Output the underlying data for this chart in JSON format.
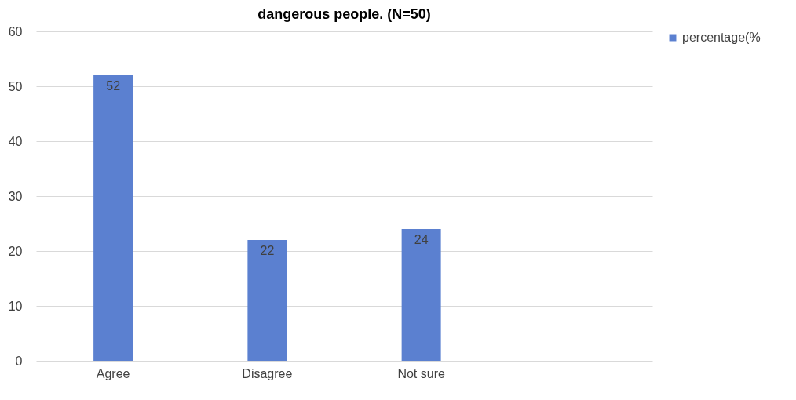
{
  "chart_data": {
    "type": "bar",
    "title": "dangerous people. (N=50)",
    "categories": [
      "Agree",
      "Disagree",
      "Not sure",
      null
    ],
    "series": [
      {
        "name": "percentage(%",
        "color": "#5b80d0",
        "values": [
          52,
          22,
          24,
          null
        ]
      }
    ],
    "ylim": [
      0,
      60
    ],
    "yticks": [
      0,
      10,
      20,
      30,
      40,
      50,
      60
    ],
    "grid": "y",
    "legend": "right",
    "data_labels": true
  }
}
